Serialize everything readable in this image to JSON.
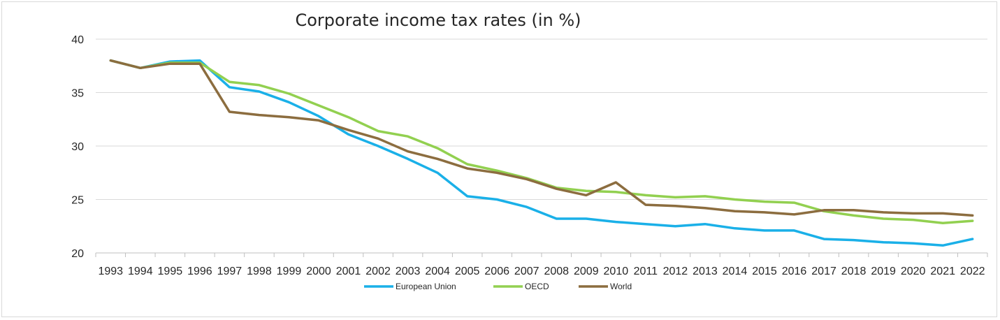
{
  "chart_data": {
    "type": "line",
    "title": "Corporate income tax rates (in %)",
    "xlabel": "",
    "ylabel": "",
    "ylim": [
      20,
      40
    ],
    "yticks": [
      20,
      25,
      30,
      35,
      40
    ],
    "grid": true,
    "legend_position": "bottom",
    "x": [
      "1993",
      "1994",
      "1995",
      "1996",
      "1997",
      "1998",
      "1999",
      "2000",
      "2001",
      "2002",
      "2003",
      "2004",
      "2005",
      "2006",
      "2007",
      "2008",
      "2009",
      "2010",
      "2011",
      "2012",
      "2013",
      "2014",
      "2015",
      "2016",
      "2017",
      "2018",
      "2019",
      "2020",
      "2021",
      "2022"
    ],
    "series": [
      {
        "name": "European Union",
        "color": "#1ab0e8",
        "values": [
          38.0,
          37.3,
          37.9,
          38.0,
          35.5,
          35.1,
          34.1,
          32.8,
          31.1,
          30.0,
          28.8,
          27.5,
          25.3,
          25.0,
          24.3,
          23.2,
          23.2,
          22.9,
          22.7,
          22.5,
          22.7,
          22.3,
          22.1,
          22.1,
          21.3,
          21.2,
          21.0,
          20.9,
          20.7,
          21.3
        ]
      },
      {
        "name": "OECD",
        "color": "#92d050",
        "values": [
          38.0,
          37.3,
          37.8,
          37.8,
          36.0,
          35.7,
          34.9,
          33.8,
          32.7,
          31.4,
          30.9,
          29.8,
          28.3,
          27.7,
          27.0,
          26.1,
          25.8,
          25.7,
          25.4,
          25.2,
          25.3,
          25.0,
          24.8,
          24.7,
          23.9,
          23.5,
          23.2,
          23.1,
          22.8,
          23.0
        ]
      },
      {
        "name": "World",
        "color": "#8c6d3f",
        "values": [
          38.0,
          37.3,
          37.7,
          37.7,
          33.2,
          32.9,
          32.7,
          32.4,
          31.5,
          30.7,
          29.5,
          28.8,
          27.9,
          27.5,
          26.9,
          26.0,
          25.4,
          26.6,
          24.5,
          24.4,
          24.2,
          23.9,
          23.8,
          23.6,
          24.0,
          24.0,
          23.8,
          23.7,
          23.7,
          23.5
        ]
      }
    ]
  }
}
